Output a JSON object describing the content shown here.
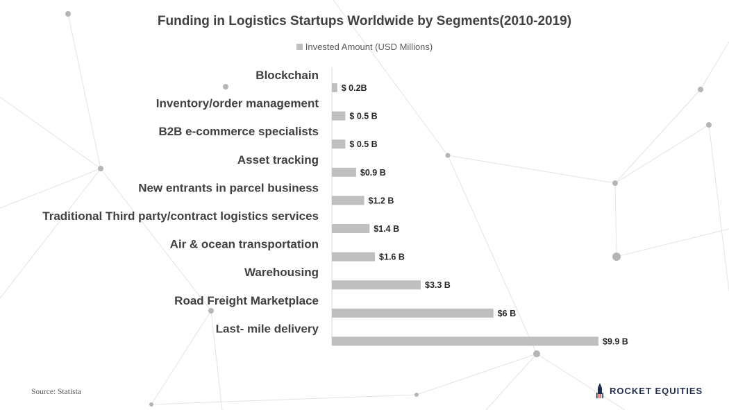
{
  "chart_data": {
    "type": "bar",
    "orientation": "horizontal",
    "title": "Funding in Logistics Startups Worldwide by Segments(2010-2019)",
    "legend": "Invested Amount (USD Millions)",
    "legend_position": "top",
    "categories": [
      "Blockchain",
      "Inventory/order management",
      "B2B e-commerce specialists",
      "Asset tracking",
      "New entrants in parcel business",
      "Traditional Third party/contract logistics services",
      "Air & ocean transportation",
      "Warehousing",
      "Road Freight Marketplace",
      "Last- mile delivery"
    ],
    "values": [
      0.2,
      0.5,
      0.5,
      0.9,
      1.2,
      1.4,
      1.6,
      3.3,
      6,
      9.9
    ],
    "value_labels": [
      "$ 0.2B",
      "$ 0.5 B",
      "$ 0.5 B",
      "$0.9 B",
      "$1.2 B",
      "$1.4 B",
      "$1.6 B",
      "$3.3 B",
      "$6 B",
      "$9.9 B"
    ],
    "xlim": [
      0,
      10
    ],
    "grid": false,
    "bar_color": "#bfbfbf"
  },
  "source": "Source: Statista",
  "brand": {
    "name": "ROCKET EQUITIES",
    "color": "#1f2d4d",
    "accent": "#c0392b",
    "icon": "rocket-logo-icon"
  }
}
